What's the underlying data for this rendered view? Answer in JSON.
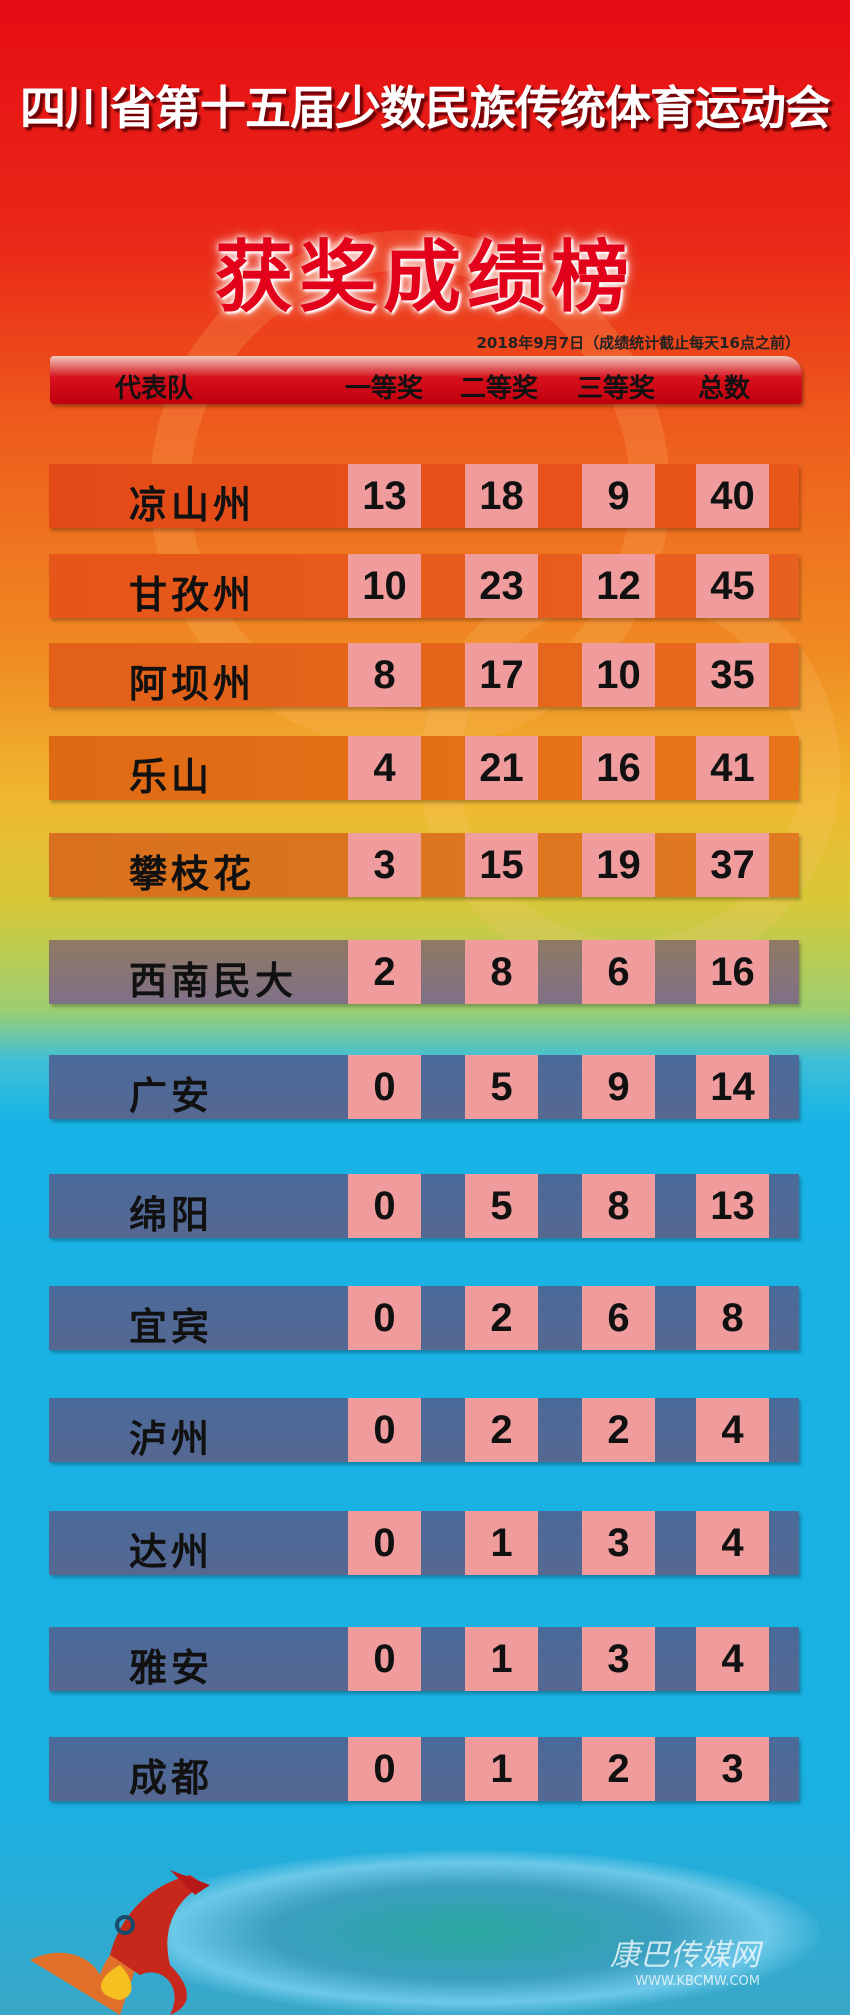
{
  "title": "四川省第十五届少数民族传统体育运动会",
  "subtitle": "获奖成绩榜",
  "date_note": "2018年9月7日（成绩统计截止每天16点之前）",
  "headers": [
    "代表队",
    "一等奖",
    "二等奖",
    "三等奖",
    "总数"
  ],
  "rows": [
    {
      "team": "凉山州",
      "v": [
        "13",
        "18",
        "9",
        "40"
      ]
    },
    {
      "team": "甘孜州",
      "v": [
        "10",
        "23",
        "12",
        "45"
      ]
    },
    {
      "team": "阿坝州",
      "v": [
        "8",
        "17",
        "10",
        "35"
      ]
    },
    {
      "team": "乐山",
      "v": [
        "4",
        "21",
        "16",
        "41"
      ]
    },
    {
      "team": "攀枝花",
      "v": [
        "3",
        "15",
        "19",
        "37"
      ]
    },
    {
      "team": "西南民大",
      "v": [
        "2",
        "8",
        "6",
        "16"
      ]
    },
    {
      "team": "广安",
      "v": [
        "0",
        "5",
        "9",
        "14"
      ]
    },
    {
      "team": "绵阳",
      "v": [
        "0",
        "5",
        "8",
        "13"
      ]
    },
    {
      "team": "宜宾",
      "v": [
        "0",
        "2",
        "6",
        "8"
      ]
    },
    {
      "team": "泸州",
      "v": [
        "0",
        "2",
        "2",
        "4"
      ]
    },
    {
      "team": "达州",
      "v": [
        "0",
        "1",
        "3",
        "4"
      ]
    },
    {
      "team": "雅安",
      "v": [
        "0",
        "1",
        "3",
        "4"
      ]
    },
    {
      "team": "成都",
      "v": [
        "0",
        "1",
        "2",
        "3"
      ]
    }
  ],
  "watermark": {
    "name": "康巴传媒网",
    "url": "WWW.KBCMW.COM"
  },
  "colors": {
    "cell": "#f19c9c",
    "title_red": "#e2001a",
    "lower_row": "#4f6796"
  }
}
